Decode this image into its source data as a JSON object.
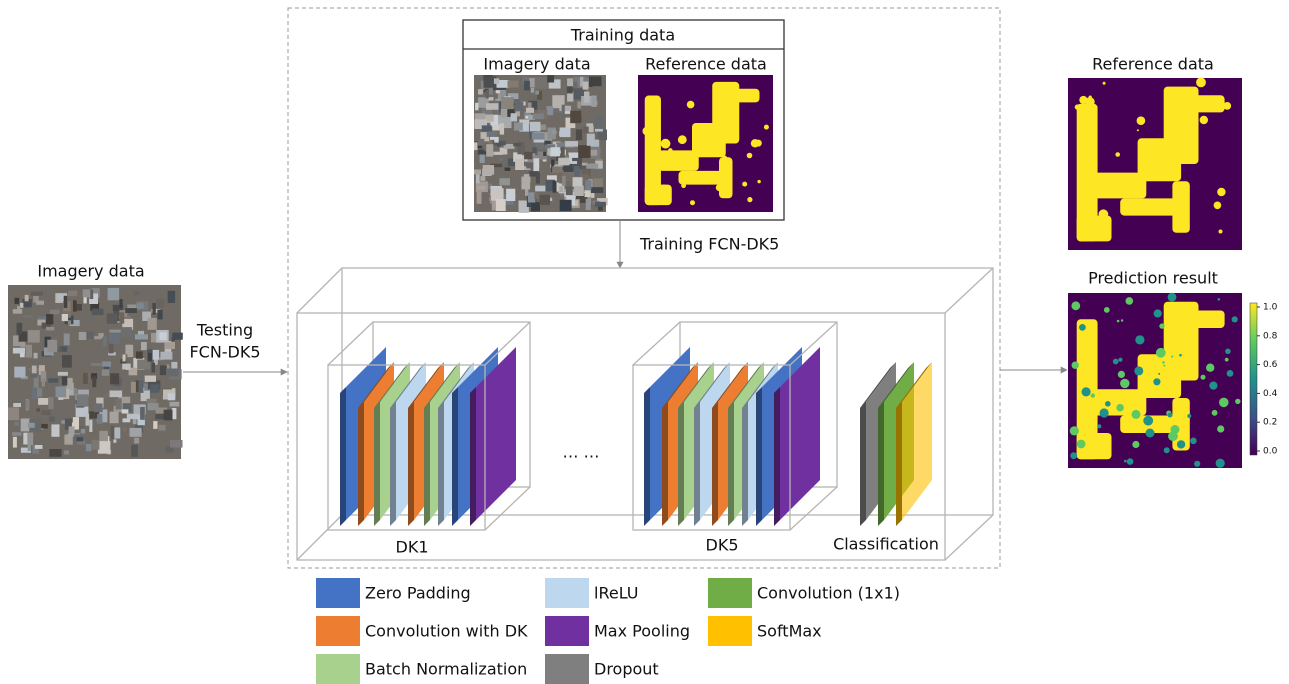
{
  "training_data": {
    "title": "Training data",
    "imagery_label": "Imagery data",
    "reference_label": "Reference data"
  },
  "training_step": "Training FCN-DK5",
  "input": {
    "label": "Imagery data"
  },
  "testing_step": [
    "Testing",
    "FCN-DK5"
  ],
  "network": {
    "blocks": [
      "DK1",
      "… …",
      "DK5",
      "Classification"
    ]
  },
  "output": {
    "reference_label": "Reference data",
    "prediction_label": "Prediction result",
    "colorbar_ticks": [
      "1.0",
      "0.8",
      "0.6",
      "0.4",
      "0.2",
      "0.0"
    ]
  },
  "legend": [
    {
      "label": "Zero Padding",
      "color": "#4472c4"
    },
    {
      "label": "Convolution with DK",
      "color": "#ed7d31"
    },
    {
      "label": "Batch Normalization",
      "color": "#a9d18e"
    },
    {
      "label": "lReLU",
      "color": "#bdd7ee"
    },
    {
      "label": "Max Pooling",
      "color": "#7030a0"
    },
    {
      "label": "Dropout",
      "color": "#7f7f7f"
    },
    {
      "label": "Convolution (1x1)",
      "color": "#70ad47"
    },
    {
      "label": "SoftMax",
      "color": "#ffc000"
    }
  ]
}
